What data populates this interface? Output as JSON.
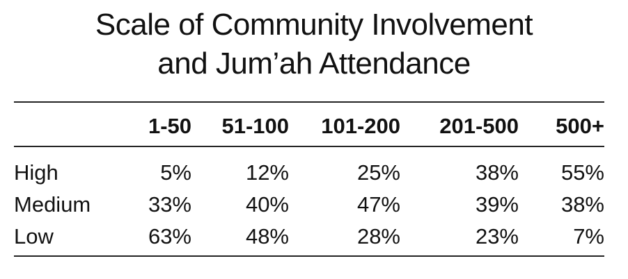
{
  "chart_data": {
    "type": "table",
    "title_line1": "Scale of Community Involvement",
    "title_line2": "and Jum’ah Attendance",
    "columns": [
      "1-50",
      "51-100",
      "101-200",
      "201-500",
      "500+"
    ],
    "rows": [
      {
        "label": "High",
        "values": [
          "5%",
          "12%",
          "25%",
          "38%",
          "55%"
        ]
      },
      {
        "label": "Medium",
        "values": [
          "33%",
          "40%",
          "47%",
          "39%",
          "38%"
        ]
      },
      {
        "label": "Low",
        "values": [
          "63%",
          "48%",
          "28%",
          "23%",
          "7%"
        ]
      }
    ]
  }
}
